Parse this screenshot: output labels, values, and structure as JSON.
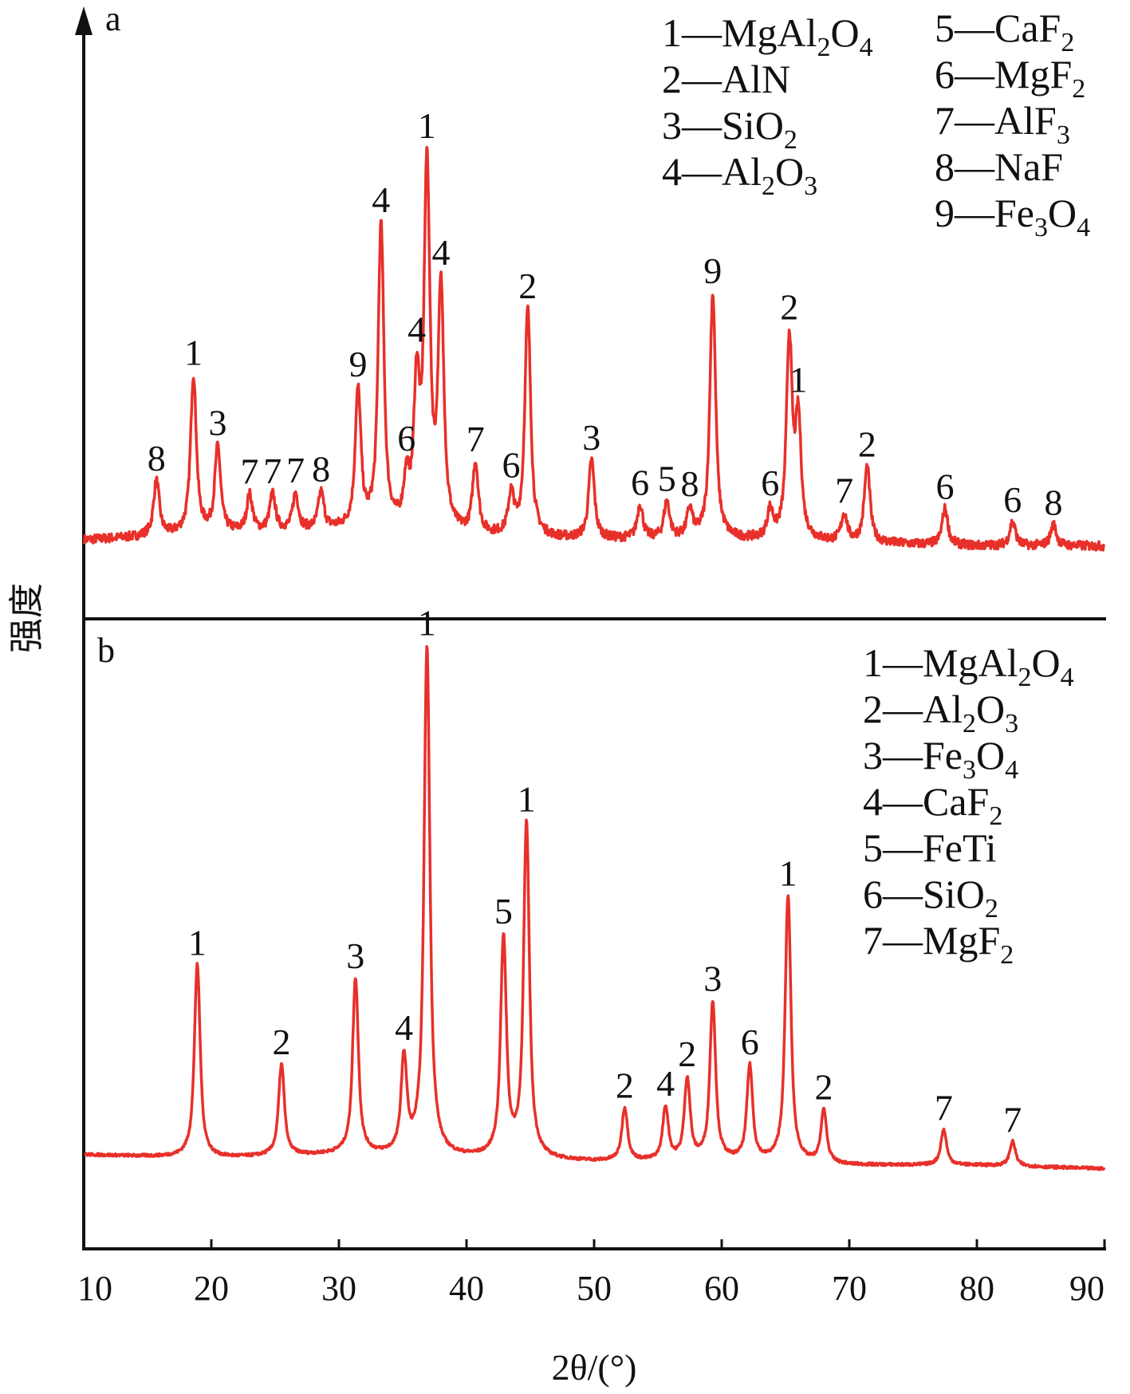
{
  "chart_data": {
    "type": "line",
    "xlabel": "2θ/(°)",
    "ylabel": "强度",
    "xlim": [
      10,
      90
    ],
    "xticks": [
      "10",
      "20",
      "30",
      "40",
      "50",
      "60",
      "70",
      "80",
      "90"
    ],
    "grid": false,
    "line_color": "#e8302a",
    "panels": [
      {
        "label": "a",
        "legend": [
          {
            "num": "1",
            "phase": "MgAl",
            "sub": "2",
            "tail": "O",
            "sub2": "4"
          },
          {
            "num": "2",
            "phase": "AlN"
          },
          {
            "num": "3",
            "phase": "SiO",
            "sub": "2"
          },
          {
            "num": "4",
            "phase": "Al",
            "sub": "2",
            "tail": "O",
            "sub2": "3"
          },
          {
            "num": "5",
            "phase": "CaF",
            "sub": "2"
          },
          {
            "num": "6",
            "phase": "MgF",
            "sub": "2"
          },
          {
            "num": "7",
            "phase": "AlF",
            "sub": "3"
          },
          {
            "num": "8",
            "phase": "NaF"
          },
          {
            "num": "9",
            "phase": "Fe",
            "sub": "3",
            "tail": "O",
            "sub2": "4"
          }
        ],
        "baseline": [
          [
            10,
            0.06
          ],
          [
            20,
            0.08
          ],
          [
            30,
            0.09
          ],
          [
            40,
            0.07
          ],
          [
            50,
            0.06
          ],
          [
            60,
            0.06
          ],
          [
            70,
            0.05
          ],
          [
            80,
            0.04
          ],
          [
            90,
            0.04
          ]
        ],
        "peaks": [
          {
            "x": 15.7,
            "y": 0.18,
            "label": "8"
          },
          {
            "x": 18.6,
            "y": 0.52,
            "label": "1"
          },
          {
            "x": 20.5,
            "y": 0.28,
            "label": "3"
          },
          {
            "x": 23.0,
            "y": 0.12,
            "label": "7"
          },
          {
            "x": 24.8,
            "y": 0.12,
            "label": "7"
          },
          {
            "x": 26.6,
            "y": 0.12,
            "label": "7"
          },
          {
            "x": 28.6,
            "y": 0.12,
            "label": "8"
          },
          {
            "x": 31.5,
            "y": 0.45,
            "label": "9"
          },
          {
            "x": 33.3,
            "y": 1.0,
            "label": "4"
          },
          {
            "x": 35.3,
            "y": 0.14,
            "label": "6"
          },
          {
            "x": 36.1,
            "y": 0.45,
            "label": "4"
          },
          {
            "x": 36.9,
            "y": 1.18,
            "label": "1"
          },
          {
            "x": 38.0,
            "y": 0.78,
            "label": "4"
          },
          {
            "x": 40.7,
            "y": 0.23,
            "label": "7"
          },
          {
            "x": 43.5,
            "y": 0.13,
            "label": "6"
          },
          {
            "x": 44.8,
            "y": 0.75,
            "label": "2"
          },
          {
            "x": 49.8,
            "y": 0.26,
            "label": "3"
          },
          {
            "x": 53.6,
            "y": 0.11,
            "label": "6"
          },
          {
            "x": 55.7,
            "y": 0.12,
            "label": "5"
          },
          {
            "x": 57.5,
            "y": 0.09,
            "label": "8"
          },
          {
            "x": 59.3,
            "y": 0.81,
            "label": "9"
          },
          {
            "x": 63.8,
            "y": 0.09,
            "label": "6"
          },
          {
            "x": 65.3,
            "y": 0.65,
            "label": "2"
          },
          {
            "x": 66.0,
            "y": 0.38,
            "label": "1"
          },
          {
            "x": 69.6,
            "y": 0.09,
            "label": "7"
          },
          {
            "x": 71.4,
            "y": 0.25,
            "label": "2"
          },
          {
            "x": 77.5,
            "y": 0.12,
            "label": "6"
          },
          {
            "x": 82.8,
            "y": 0.08,
            "label": "6"
          },
          {
            "x": 86.0,
            "y": 0.07,
            "label": "8"
          }
        ]
      },
      {
        "label": "b",
        "legend": [
          {
            "num": "1",
            "phase": "MgAl",
            "sub": "2",
            "tail": "O",
            "sub2": "4"
          },
          {
            "num": "2",
            "phase": "Al",
            "sub": "2",
            "tail": "O",
            "sub2": "3"
          },
          {
            "num": "3",
            "phase": "Fe",
            "sub": "3",
            "tail": "O",
            "sub2": "4"
          },
          {
            "num": "4",
            "phase": "CaF",
            "sub": "2"
          },
          {
            "num": "5",
            "phase": "FeTi"
          },
          {
            "num": "6",
            "phase": "SiO",
            "sub": "2"
          },
          {
            "num": "7",
            "phase": "MgF",
            "sub": "2"
          }
        ],
        "baseline": [
          [
            10,
            0.1
          ],
          [
            20,
            0.09
          ],
          [
            30,
            0.1
          ],
          [
            40,
            0.09
          ],
          [
            50,
            0.08
          ],
          [
            60,
            0.08
          ],
          [
            70,
            0.07
          ],
          [
            80,
            0.07
          ],
          [
            90,
            0.06
          ]
        ],
        "peaks": [
          {
            "x": 18.9,
            "y": 0.55,
            "label": "1"
          },
          {
            "x": 25.5,
            "y": 0.26,
            "label": "2"
          },
          {
            "x": 31.3,
            "y": 0.5,
            "label": "3"
          },
          {
            "x": 35.1,
            "y": 0.27,
            "label": "4"
          },
          {
            "x": 36.9,
            "y": 1.45,
            "label": "1"
          },
          {
            "x": 42.9,
            "y": 0.62,
            "label": "5"
          },
          {
            "x": 44.7,
            "y": 0.95,
            "label": "1"
          },
          {
            "x": 52.4,
            "y": 0.15,
            "label": "2"
          },
          {
            "x": 55.6,
            "y": 0.15,
            "label": "4"
          },
          {
            "x": 57.3,
            "y": 0.23,
            "label": "2"
          },
          {
            "x": 59.3,
            "y": 0.45,
            "label": "3"
          },
          {
            "x": 62.2,
            "y": 0.27,
            "label": "6"
          },
          {
            "x": 65.2,
            "y": 0.76,
            "label": "1"
          },
          {
            "x": 68.0,
            "y": 0.15,
            "label": "2"
          },
          {
            "x": 77.4,
            "y": 0.1,
            "label": "7"
          },
          {
            "x": 82.8,
            "y": 0.07,
            "label": "7"
          }
        ]
      }
    ]
  }
}
